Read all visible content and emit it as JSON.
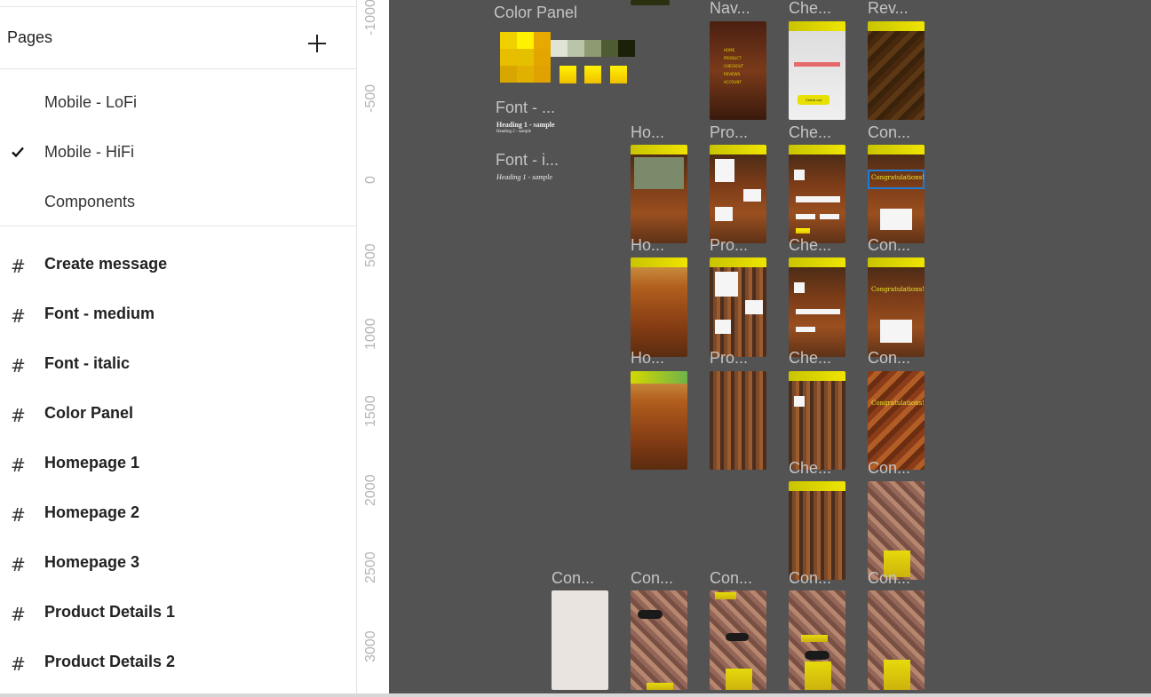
{
  "sidebar": {
    "pages_title": "Pages",
    "pages": [
      {
        "label": "Mobile - LoFi",
        "active": false
      },
      {
        "label": "Mobile - HiFi",
        "active": true
      },
      {
        "label": "Components",
        "active": false
      }
    ],
    "frames": [
      "Create message",
      "Font - medium",
      "Font - italic",
      "Color Panel",
      "Homepage 1",
      "Homepage 2",
      "Homepage 3",
      "Product Details 1",
      "Product Details 2"
    ]
  },
  "ruler": {
    "ticks": [
      "-1000",
      "-500",
      "0",
      "500",
      "1000",
      "1500",
      "2000",
      "2500",
      "3000"
    ]
  },
  "canvas": {
    "color_panel_title": "Color Panel",
    "font_medium_title": "Font - ...",
    "font_italic_title": "Font - i...",
    "font_samples": {
      "heading1": "Heading 1 - sample",
      "heading2": "Heading 2 - sample",
      "heading1_italic": "Heading 1 - sample"
    },
    "frame_titles": {
      "col2_r1": "Nav...",
      "col3_r1": "Che...",
      "col4_r1": "Rev...",
      "col1_r2": "Ho...",
      "col2_r2": "Pro...",
      "col3_r2": "Che...",
      "col4_r2": "Con...",
      "col1_r3": "Ho...",
      "col2_r3": "Pro...",
      "col3_r3": "Che...",
      "col4_r3": "Con...",
      "col1_r4": "Ho...",
      "col2_r4": "Pro...",
      "col3_r4": "Che...",
      "col4_r4": "Con...",
      "col3_r5": "Che...",
      "col4_r5": "Con...",
      "bottom_a": "Con...",
      "bottom_b": "Con...",
      "bottom_c": "Con...",
      "bottom_d": "Con...",
      "bottom_e": "Con..."
    },
    "congrats_text": "Congratulations!",
    "nav_items": [
      "HOME",
      "PRODUCT",
      "CHECKOUT",
      "REVIEWS",
      "ACCOUNT"
    ],
    "checkout_label": "Check out"
  },
  "colors": {
    "canvas_bg": "#535353",
    "yellow": "#fff200",
    "olive": "#1b2008",
    "selection_blue": "#1e7bd6"
  }
}
